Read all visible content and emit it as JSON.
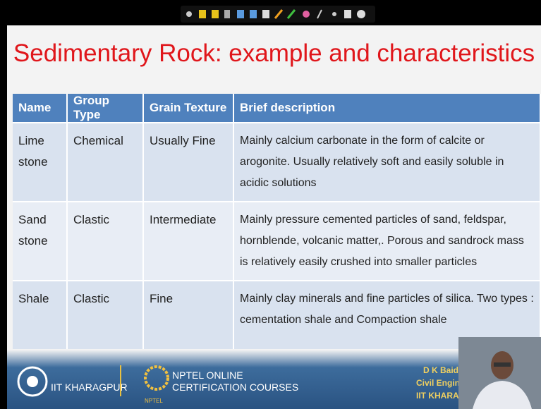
{
  "header": {
    "title": "Sedimentary Rock: example and characteristics"
  },
  "table": {
    "columns": [
      "Name",
      "Group Type",
      "Grain Texture",
      "Brief description"
    ],
    "rows": [
      [
        "Lime stone",
        "Chemical",
        "Usually Fine",
        "Mainly calcium carbonate in the form of calcite or arogonite. Usually relatively soft and easily soluble in acidic solutions"
      ],
      [
        "Sand stone",
        "Clastic",
        "Intermediate",
        "Mainly pressure cemented particles of sand, feldspar, hornblende, volcanic matter,. Porous and sandrock mass is relatively easily crushed into smaller particles"
      ],
      [
        "Shale",
        "Clastic",
        "Fine",
        "Mainly clay minerals and fine particles of silica. Two types : cementation shale and Compaction shale"
      ]
    ]
  },
  "footer": {
    "institute": "IIT KHARAGPUR",
    "nptel_line1": "NPTEL ONLINE",
    "nptel_line2": "CERTIFICATION COURSES",
    "nptel_logo": "NPTEL",
    "speaker_name": "D K Baid",
    "speaker_dept": "Civil Engine",
    "speaker_inst": "IIT KHARAG"
  }
}
